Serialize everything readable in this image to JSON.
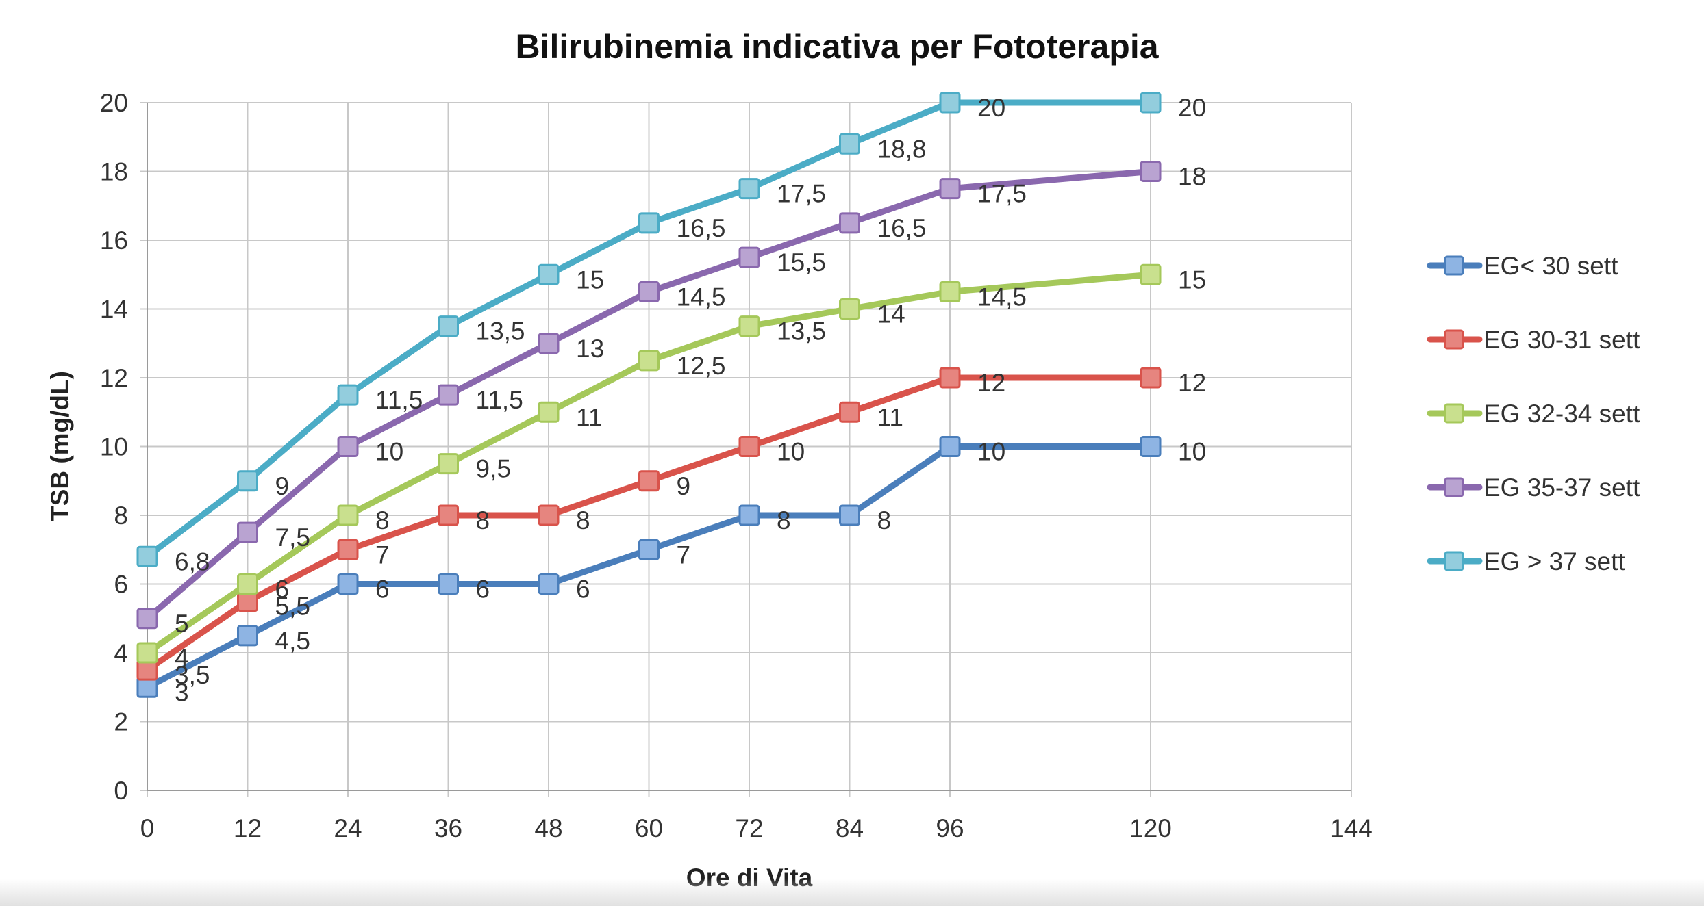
{
  "chart_data": {
    "type": "line",
    "title": "Bilirubinemia indicativa per Fototerapia",
    "xlabel": "Ore di Vita",
    "ylabel": "TSB (mg/dL)",
    "xlim": [
      0,
      144
    ],
    "ylim": [
      0,
      20
    ],
    "x_ticks": [
      0,
      12,
      24,
      36,
      48,
      60,
      72,
      84,
      96,
      120,
      144
    ],
    "y_ticks": [
      0,
      2,
      4,
      6,
      8,
      10,
      12,
      14,
      16,
      18,
      20
    ],
    "grid": true,
    "legend_position": "right",
    "series": [
      {
        "name": "EG< 30 sett",
        "color": "#4A7EBB",
        "marker_color": "#8EB4E3",
        "x": [
          0,
          12,
          24,
          36,
          48,
          60,
          72,
          84,
          96,
          120
        ],
        "y": [
          3,
          4.5,
          6,
          6,
          6,
          7,
          8,
          8,
          10,
          10
        ],
        "labels": [
          "3",
          "4,5",
          "6",
          "6",
          "6",
          "7",
          "8",
          "8",
          "10",
          "10"
        ]
      },
      {
        "name": "EG 30-31 sett",
        "color": "#D9534B",
        "marker_color": "#E6857F",
        "x": [
          0,
          12,
          24,
          36,
          48,
          60,
          72,
          84,
          96,
          120
        ],
        "y": [
          3.5,
          5.5,
          7,
          8,
          8,
          9,
          10,
          11,
          12,
          12
        ],
        "labels": [
          "3,5",
          "5,5",
          "7",
          "8",
          "8",
          "9",
          "10",
          "11",
          "12",
          "12"
        ]
      },
      {
        "name": "EG 32-34 sett",
        "color": "#A5C85A",
        "marker_color": "#C9E08E",
        "x": [
          0,
          12,
          24,
          36,
          48,
          60,
          72,
          84,
          96,
          120
        ],
        "y": [
          4,
          6,
          8,
          9.5,
          11,
          12.5,
          13.5,
          14,
          14.5,
          15
        ],
        "labels": [
          "4",
          "6",
          "8",
          "9,5",
          "11",
          "12,5",
          "13,5",
          "14",
          "14,5",
          "15"
        ]
      },
      {
        "name": "EG 35-37 sett",
        "color": "#8A68AE",
        "marker_color": "#B9A3D1",
        "x": [
          0,
          12,
          24,
          36,
          48,
          60,
          72,
          84,
          96,
          120
        ],
        "y": [
          5,
          7.5,
          10,
          11.5,
          13,
          14.5,
          15.5,
          16.5,
          17.5,
          18
        ],
        "labels": [
          "5",
          "7,5",
          "10",
          "11,5",
          "13",
          "14,5",
          "15,5",
          "16,5",
          "17,5",
          "18"
        ]
      },
      {
        "name": "EG > 37 sett",
        "color": "#4BACC6",
        "marker_color": "#93CDDD",
        "x": [
          0,
          12,
          24,
          36,
          48,
          60,
          72,
          84,
          96,
          120
        ],
        "y": [
          6.8,
          9,
          11.5,
          13.5,
          15,
          16.5,
          17.5,
          18.8,
          20,
          20
        ],
        "labels": [
          "6,8",
          "9",
          "11,5",
          "13,5",
          "15",
          "16,5",
          "17,5",
          "18,8",
          "20",
          "20"
        ]
      }
    ]
  }
}
